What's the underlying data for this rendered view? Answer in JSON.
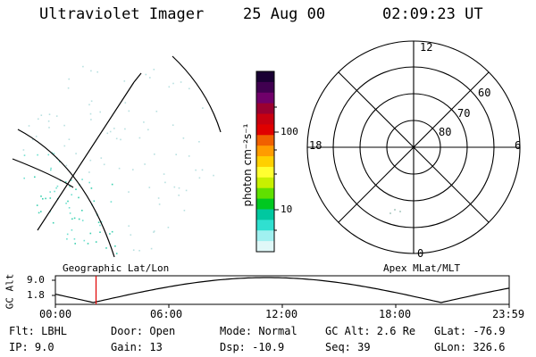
{
  "header": {
    "instrument": "Ultraviolet Imager",
    "date": "25 Aug 00",
    "time": "02:09:23 UT"
  },
  "colorbar": {
    "unit_label": "photon cm⁻²s⁻¹",
    "tick_labels": [
      "100",
      "10"
    ],
    "colors": [
      "#1a0033",
      "#400050",
      "#70006a",
      "#9a0030",
      "#c80010",
      "#e00000",
      "#f06000",
      "#ff9c00",
      "#ffd000",
      "#ffff30",
      "#c8f000",
      "#60e000",
      "#00c820",
      "#00c8a0",
      "#30e0d0",
      "#a0f0f0",
      "#e0f8f8"
    ]
  },
  "polar_plot": {
    "title": "Apex MLat/MLT",
    "lat_labels": [
      "60",
      "70",
      "80"
    ],
    "mlt_labels": {
      "top": "12",
      "left": "18",
      "right": "6",
      "bottom": "0"
    }
  },
  "image_panel": {
    "title": "Geographic Lat/Lon"
  },
  "altitude_strip": {
    "axis_label": "GC Alt",
    "y_ticks": [
      "9.0",
      "1.8"
    ],
    "x_ticks": [
      "00:00",
      "06:00",
      "12:00",
      "18:00",
      "23:59"
    ],
    "marker_color": "#e00000",
    "marker_time_hours": 2.15
  },
  "footer": {
    "rows": [
      [
        "Flt: LBHL",
        "Door: Open",
        "Mode: Normal",
        "GC Alt: 2.6 Re",
        "GLat: -76.9"
      ],
      [
        "IP:  9.0",
        "Gain: 13",
        "Dsp:  -10.9",
        "Seq: 39",
        "GLon: 326.6"
      ]
    ]
  }
}
